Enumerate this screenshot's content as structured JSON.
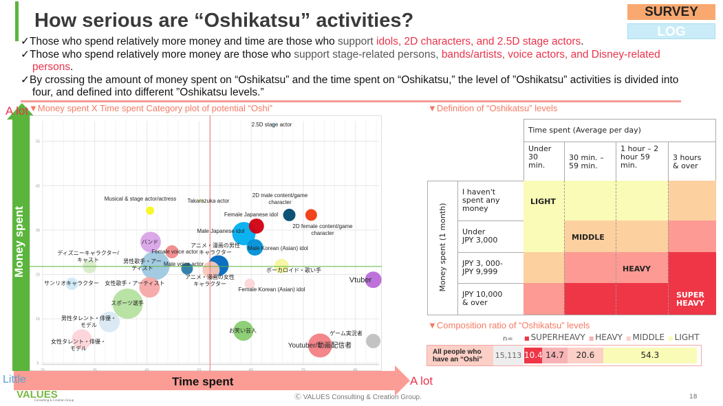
{
  "header": {
    "title": "How serious are “Oshikatsu” activities?",
    "survey_label": "SURVEY",
    "log_label": "LOG"
  },
  "bullets": [
    {
      "check": "✓",
      "parts": [
        "Those who spend relatively more money and time are those who ",
        "support ",
        "idols, 2D characters, and 2.5D stage actors",
        "."
      ]
    },
    {
      "check": "✓",
      "parts": [
        "Those who spend relatively more money are those who ",
        "support stage-related persons, ",
        "bands/artists, voice actors, and Disney-related persons",
        "."
      ]
    },
    {
      "check": "✓",
      "parts": [
        "By crossing the amount of money spent on “Oshikatsu” and the time spent on “Oshikatsu,” the level of ”Oshikatsu” activities is divided into four, and defined into different ”Oshikatsu levels.”"
      ]
    }
  ],
  "chart_section": {
    "title": "▼Money spent X Time spent Category plot of potential “Oshi”",
    "y_axis_label": "Money spent",
    "y_high": "A lot",
    "x_axis_label": "Time spent",
    "x_low": "Little",
    "x_high": "A lot"
  },
  "chart_data": {
    "type": "scatter",
    "subtype": "bubble",
    "title": "Money spent X Time spent Category plot of potential “Oshi”",
    "xlabel": "Time spent",
    "ylabel": "Money spent",
    "xlim": [
      24,
      92
    ],
    "ylim": [
      4,
      59
    ],
    "x_ticks": [
      "25",
      "35",
      "45",
      "55",
      "65",
      "75",
      "85"
    ],
    "y_ticks": [
      "5",
      "15",
      "25",
      "35",
      "45",
      "55"
    ],
    "grid": true,
    "reference_lines": {
      "x": 57.1,
      "y": 26.8,
      "x_color": "#f07070",
      "y_color": "#5bb53c"
    },
    "points": [
      {
        "label": "2.5D stage actor",
        "x": 69.2,
        "y": 58.7,
        "size": 3,
        "color": "#bde7f7"
      },
      {
        "label": "Musical & stage actor/actress",
        "x": 45.6,
        "y": 39.4,
        "size": 6,
        "color": "#f7f722"
      },
      {
        "label": "Takarazuka actor",
        "x": 55.4,
        "y": 41.7,
        "size": 2,
        "color": "#f5f560"
      },
      {
        "label": "2D male content/game\ncharacter",
        "x": 72.3,
        "y": 38.4,
        "size": 9,
        "color": "#004a6e"
      },
      {
        "label": "2D female content/game\ncharacter",
        "x": 76.5,
        "y": 38.4,
        "size": 8.5,
        "color": "#f03a10"
      },
      {
        "label": "Male Japanese idol",
        "x": 63.6,
        "y": 34.2,
        "size": 17,
        "color": "#00aeef"
      },
      {
        "label": "Female Japanese idol",
        "x": 66.0,
        "y": 35.9,
        "size": 11,
        "color": "#d00010"
      },
      {
        "label": "Male Korean (Asian) idol",
        "x": 65.7,
        "y": 31.1,
        "size": 12,
        "color": "#0090d8"
      },
      {
        "label": "バンド",
        "x": 45.7,
        "y": 32.3,
        "size": 15,
        "color": "#d9a3e8"
      },
      {
        "label": "Female voice actor",
        "x": 49.8,
        "y": 30.1,
        "size": 9.5,
        "color": "#f08a8a"
      },
      {
        "label": "男性歌手・アー\nティスト",
        "x": 46.6,
        "y": 27.0,
        "size": 21,
        "color": "#9ec8e0"
      },
      {
        "label": "ディズニーキャラクター/\nキャスト",
        "x": 34.0,
        "y": 26.8,
        "size": 10,
        "color": "#d8ecc8"
      },
      {
        "label": "Male voice actor",
        "x": 52.7,
        "y": 26.3,
        "size": 8.5,
        "color": "#2a7aa8"
      },
      {
        "label": "アニメ・漫画の男性\nキャラクター",
        "x": 58.7,
        "y": 27.0,
        "size": 15,
        "color": "#0068c0"
      },
      {
        "label": "アニメ・漫画の女性\nキャラクター",
        "x": 57.3,
        "y": 26.0,
        "size": 12.5,
        "color": "#fbc7b8"
      },
      {
        "label": "ボーカロイド・歌い手",
        "x": 70.8,
        "y": 26.9,
        "size": 10.5,
        "color": "#f5f5a0"
      },
      {
        "label": "Vtuber",
        "x": 88.4,
        "y": 23.8,
        "size": 12,
        "color": "#b86ad8"
      },
      {
        "label": "Female Korean (Asian) idol",
        "x": 64.7,
        "y": 22.9,
        "size": 7.5,
        "color": "#fcd6d6"
      },
      {
        "label": "サンリオキャラクター",
        "x": 30.6,
        "y": 22.9,
        "size": 9,
        "color": "#cfe9f8"
      },
      {
        "label": "女性歌手・アーティスト",
        "x": 45.5,
        "y": 22.1,
        "size": 15,
        "color": "#f7a8a8"
      },
      {
        "label": "スポーツ選手",
        "x": 41.3,
        "y": 18.4,
        "size": 22,
        "color": "#b5e0a0"
      },
      {
        "label": "男性タレント・俳優・\nモデル",
        "x": 37.8,
        "y": 14.3,
        "size": 15,
        "color": "#d8e8f3"
      },
      {
        "label": "女性タレント・俳優・\nモデル",
        "x": 32.5,
        "y": 10.4,
        "size": 14.5,
        "color": "#fcd4d8"
      },
      {
        "label": "お笑い芸人",
        "x": 63.5,
        "y": 12.3,
        "size": 14.5,
        "color": "#88cc70"
      },
      {
        "label": "Youtuber/動画配信者",
        "x": 78.2,
        "y": 9.0,
        "size": 17.5,
        "color": "#f17f84"
      },
      {
        "label": "ゲーム実況者",
        "x": 88.4,
        "y": 10.0,
        "size": 10.5,
        "color": "#c0c0c0"
      }
    ]
  },
  "definition": {
    "title": "▼Definition of “Oshikatsu” levels",
    "time_header": "Time spent (Average per day)",
    "time_cols": [
      "Under\n30\nmin.",
      "30 min. –\n59 min.",
      "1 hour – 2\nhour 59\nmin.",
      "3 hours\n& over"
    ],
    "money_header": "Money spent (1 month)",
    "money_rows": [
      "I haven't\nspent any\nmoney",
      "Under\nJPY 3,000",
      "JPY 3, 000-\nJPY 9,999",
      "JPY 10,000\n& over"
    ],
    "grid_levels": [
      [
        "LIGHT",
        "LIGHT",
        "LIGHT",
        "MIDDLE"
      ],
      [
        "LIGHT",
        "MIDDLE",
        "MIDDLE",
        "HEAVY"
      ],
      [
        "MIDDLE",
        "HEAVY",
        "HEAVY",
        "SUPERHEAVY"
      ],
      [
        "HEAVY",
        "SUPERHEAVY",
        "SUPERHEAVY",
        "SUPERHEAVY"
      ]
    ],
    "level_labels": {
      "light": "LIGHT",
      "middle": "MIDDLE",
      "heavy": "HEAVY",
      "superheavy": "SUPER\nHEAVY"
    },
    "colors": {
      "LIGHT": "#f9fbb6",
      "MIDDLE": "#fdd09f",
      "HEAVY": "#fd9a93",
      "SUPERHEAVY": "#ee3646"
    }
  },
  "composition": {
    "title": "▼Composition ratio of “Oshikatsu” levels",
    "n_label": "n=",
    "legend": [
      {
        "label": "SUPERHEAVY",
        "color": "#ee3646"
      },
      {
        "label": "HEAVY",
        "color": "#f7b3b5"
      },
      {
        "label": "MIDDLE",
        "color": "#fcd0c6"
      },
      {
        "label": "LIGHT",
        "color": "#f9fbb6"
      }
    ],
    "row_label": "All people who\nhave an “Oshi”",
    "n": "15,113",
    "values": [
      {
        "level": "SUPERHEAVY",
        "value": 10.4,
        "text": "10.4"
      },
      {
        "level": "HEAVY",
        "value": 14.7,
        "text": "14.7"
      },
      {
        "level": "MIDDLE",
        "value": 20.6,
        "text": "20.6"
      },
      {
        "level": "LIGHT",
        "value": 54.3,
        "text": "54.3"
      }
    ]
  },
  "footer": {
    "logo": "VALUES",
    "logo_sub": "Consulting & Creation Group",
    "copyright": "Ⓒ VALUES Consulting & Creation Group.",
    "page": "18"
  }
}
